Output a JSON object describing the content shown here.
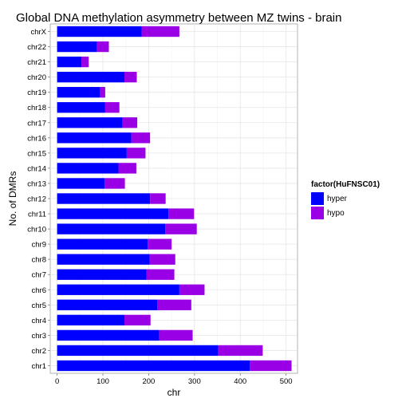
{
  "chart_data": {
    "type": "bar",
    "orientation": "horizontal",
    "stacked": true,
    "title": "Global DNA methylation asymmetry between MZ twins - brain",
    "xlabel": "chr",
    "ylabel": "No. of DMRs",
    "xlim": [
      -15,
      525
    ],
    "x_ticks": [
      0,
      100,
      200,
      300,
      400,
      500
    ],
    "grid": true,
    "legend": {
      "title": "factor(HuFNSC01)",
      "position": "right"
    },
    "categories": [
      "chr1",
      "chr2",
      "chr3",
      "chr4",
      "chr5",
      "chr6",
      "chr7",
      "chr8",
      "chr9",
      "chr10",
      "chr11",
      "chr12",
      "chr13",
      "chr14",
      "chr15",
      "chr16",
      "chr17",
      "chr18",
      "chr19",
      "chr20",
      "chr21",
      "chr22",
      "chrX"
    ],
    "series": [
      {
        "name": "hyper",
        "color": "#0000ff",
        "values": [
          421,
          352,
          223,
          147,
          219,
          267,
          195,
          202,
          198,
          236,
          243,
          203,
          104,
          134,
          152,
          162,
          143,
          105,
          93,
          147,
          53,
          86,
          185
        ]
      },
      {
        "name": "hypo",
        "color": "#9a00e6",
        "values": [
          91,
          97,
          73,
          57,
          74,
          55,
          61,
          56,
          52,
          69,
          56,
          34,
          44,
          39,
          41,
          41,
          32,
          31,
          12,
          27,
          16,
          27,
          82
        ]
      }
    ]
  }
}
